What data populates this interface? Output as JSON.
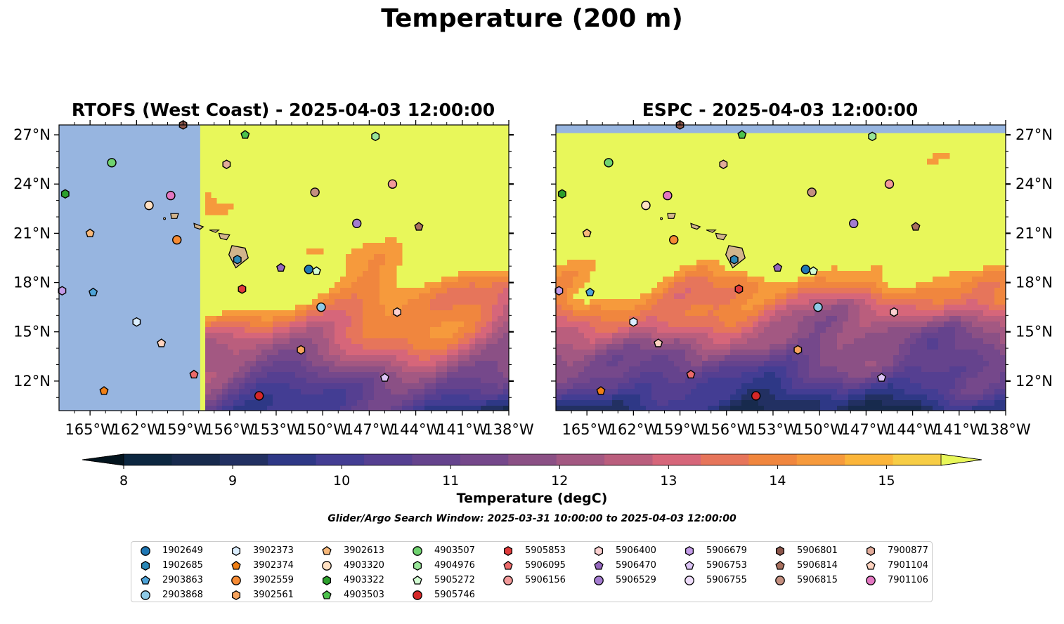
{
  "figure": {
    "title": "Temperature (200 m)",
    "search_window": "Glider/Argo Search Window: 2025-03-31 10:00:00 to 2025-04-03 12:00:00"
  },
  "colors": {
    "land": "#d2b48c",
    "nodata": "#97b5e0",
    "warm": "#e8f75a"
  },
  "chart_data": [
    {
      "type": "heatmap",
      "title": "RTOFS (West Coast) - 2025-04-03 12:00:00",
      "xlim": [
        -167,
        -138
      ],
      "ylim": [
        10.2,
        27.6
      ],
      "x_ticks": [
        "165°W",
        "162°W",
        "159°W",
        "156°W",
        "153°W",
        "150°W",
        "147°W",
        "144°W",
        "141°W",
        "138°W"
      ],
      "y_ticks": [
        "12°N",
        "15°N",
        "18°N",
        "21°N",
        "24°N",
        "27°N"
      ],
      "model_coverage_west_lon": -157.9,
      "field": "Temperature at 200 m (degC); mostly >15.5 north of ~19°N, 9.5–14 south"
    },
    {
      "type": "heatmap",
      "title": "ESPC - 2025-04-03 12:00:00",
      "xlim": [
        -167,
        -138
      ],
      "ylim": [
        10.2,
        27.6
      ],
      "x_ticks": [
        "165°W",
        "162°W",
        "159°W",
        "156°W",
        "153°W",
        "150°W",
        "147°W",
        "144°W",
        "141°W",
        "138°W"
      ],
      "y_ticks": [
        "12°N",
        "15°N",
        "18°N",
        "21°N",
        "24°N",
        "27°N"
      ],
      "model_coverage_north_lat": 27.1,
      "field": "Temperature at 200 m (degC); mostly >15.5 north of ~17°N, 10–12 in the south"
    },
    {
      "type": "colorbar",
      "label": "Temperature (degC)",
      "range": [
        8,
        15.5
      ],
      "step": 0.5,
      "tick_labels": [
        "8",
        "9",
        "10",
        "11",
        "12",
        "13",
        "14",
        "15"
      ],
      "colors": [
        "#0c2740",
        "#172a4d",
        "#223062",
        "#2e3886",
        "#433d93",
        "#553f91",
        "#65438d",
        "#75488b",
        "#8b5085",
        "#a35882",
        "#ba5e7d",
        "#d6667a",
        "#e6755b",
        "#f0863e",
        "#f69a3c",
        "#fbb53a",
        "#f7cd45"
      ],
      "extend_low_color": "#03141e",
      "extend_high_color": "#e8f75a"
    },
    {
      "type": "scatter",
      "name": "platforms",
      "points": [
        {
          "id": "1902649",
          "marker": "circle",
          "color": "#1f77b4",
          "lon": -150.9,
          "lat": 18.8
        },
        {
          "id": "1902685",
          "marker": "hexagon",
          "color": "#2c89b8",
          "lon": -155.5,
          "lat": 19.4
        },
        {
          "id": "2903863",
          "marker": "pentagon",
          "color": "#4ea3d8",
          "lon": -164.8,
          "lat": 17.4
        },
        {
          "id": "2903868",
          "marker": "circle",
          "color": "#8ecae6",
          "lon": -150.1,
          "lat": 16.5
        },
        {
          "id": "3902373",
          "marker": "hexagon",
          "color": "#dbeeff",
          "lon": -162.0,
          "lat": 15.6
        },
        {
          "id": "3902374",
          "marker": "pentagon",
          "color": "#f07f15",
          "lon": -164.1,
          "lat": 11.4
        },
        {
          "id": "3902559",
          "marker": "circle",
          "color": "#f68b34",
          "lon": -159.4,
          "lat": 20.6
        },
        {
          "id": "3902561",
          "marker": "hexagon",
          "color": "#f7a35c",
          "lon": -151.4,
          "lat": 13.9
        },
        {
          "id": "3902613",
          "marker": "pentagon",
          "color": "#f7b87a",
          "lon": -165.0,
          "lat": 21.0
        },
        {
          "id": "4903320",
          "marker": "circle",
          "color": "#ffe0c2",
          "lon": -161.2,
          "lat": 22.7
        },
        {
          "id": "4903322",
          "marker": "hexagon",
          "color": "#2ca02c",
          "lon": -166.6,
          "lat": 23.4
        },
        {
          "id": "4903503",
          "marker": "pentagon",
          "color": "#4cc24c",
          "lon": -155.0,
          "lat": 27.0
        },
        {
          "id": "4903507",
          "marker": "circle",
          "color": "#6fd36f",
          "lon": -163.6,
          "lat": 25.3
        },
        {
          "id": "4904976",
          "marker": "hexagon",
          "color": "#98e598",
          "lon": -146.6,
          "lat": 26.9
        },
        {
          "id": "5905272",
          "marker": "pentagon",
          "color": "#d3fdd3",
          "lon": -150.4,
          "lat": 18.7
        },
        {
          "id": "5905746",
          "marker": "circle",
          "color": "#d62728",
          "lon": -154.1,
          "lat": 11.1
        },
        {
          "id": "5905853",
          "marker": "hexagon",
          "color": "#e03b3b",
          "lon": -155.2,
          "lat": 17.6
        },
        {
          "id": "5906095",
          "marker": "pentagon",
          "color": "#ec6a6a",
          "lon": -158.3,
          "lat": 12.4
        },
        {
          "id": "5906156",
          "marker": "circle",
          "color": "#f29a9a",
          "lon": -145.5,
          "lat": 24.0
        },
        {
          "id": "5906400",
          "marker": "hexagon",
          "color": "#fcd0d0",
          "lon": -145.2,
          "lat": 16.2
        },
        {
          "id": "5906470",
          "marker": "pentagon",
          "color": "#9467bd",
          "lon": -152.7,
          "lat": 18.9
        },
        {
          "id": "5906529",
          "marker": "circle",
          "color": "#a47cd0",
          "lon": -147.8,
          "lat": 21.6
        },
        {
          "id": "5906679",
          "marker": "hexagon",
          "color": "#c39be8",
          "lon": -166.8,
          "lat": 17.5
        },
        {
          "id": "5906753",
          "marker": "pentagon",
          "color": "#dcc4f5",
          "lon": -146.0,
          "lat": 12.2
        },
        {
          "id": "5906755",
          "marker": "circle",
          "color": "#eedcfb",
          "lon": -146.0,
          "lat": 12.2,
          "hidden": true
        },
        {
          "id": "5906801",
          "marker": "hexagon",
          "color": "#8c564b",
          "lon": -159.0,
          "lat": 27.6
        },
        {
          "id": "5906814",
          "marker": "pentagon",
          "color": "#a8705e",
          "lon": -143.8,
          "lat": 21.4
        },
        {
          "id": "5906815",
          "marker": "circle",
          "color": "#c48f80",
          "lon": -150.5,
          "lat": 23.5
        },
        {
          "id": "7900877",
          "marker": "hexagon",
          "color": "#e2ab9a",
          "lon": -156.2,
          "lat": 25.2
        },
        {
          "id": "7901104",
          "marker": "pentagon",
          "color": "#ffd3bf",
          "lon": -160.4,
          "lat": 14.3
        },
        {
          "id": "7901106",
          "marker": "circle",
          "color": "#e377c2",
          "lon": -159.8,
          "lat": 23.3
        }
      ]
    }
  ],
  "legend": {
    "columns": [
      [
        "1902649",
        "1902685",
        "2903863",
        "2903868"
      ],
      [
        "3902373",
        "3902374",
        "3902559",
        "3902561"
      ],
      [
        "3902613",
        "4903320",
        "4903322",
        "4903503"
      ],
      [
        "4903507",
        "4904976",
        "5905272",
        "5905746"
      ],
      [
        "5905853",
        "5906095",
        "5906156"
      ],
      [
        "5906400",
        "5906470",
        "5906529"
      ],
      [
        "5906679",
        "5906753",
        "5906755"
      ],
      [
        "5906801",
        "5906814",
        "5906815"
      ],
      [
        "7900877",
        "7901104",
        "7901106"
      ]
    ]
  }
}
